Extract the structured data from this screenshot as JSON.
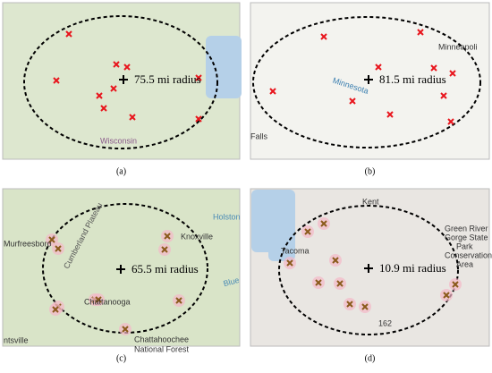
{
  "panels": [
    {
      "caption": "(a)",
      "radius_label": "75.5 mi radius",
      "labels": [
        "Wisconsin"
      ]
    },
    {
      "caption": "(b)",
      "radius_label": "81.5 mi radius",
      "labels": [
        "Minneapoli",
        "Minnesota",
        "Falls"
      ]
    },
    {
      "caption": "(c)",
      "radius_label": "65.5 mi radius",
      "labels": [
        "Murfreesboro",
        "Knoxville",
        "Chattanooga",
        "Chattahoochee",
        "National Forest",
        "Cumberland Plateau",
        "Holston",
        "Blue",
        "ntsville"
      ]
    },
    {
      "caption": "(d)",
      "radius_label": "10.9 mi radius",
      "labels": [
        "Kent",
        "Tacoma",
        "Green River",
        "Gorge State",
        "Park",
        "Conservation",
        "Area",
        "162"
      ]
    }
  ]
}
